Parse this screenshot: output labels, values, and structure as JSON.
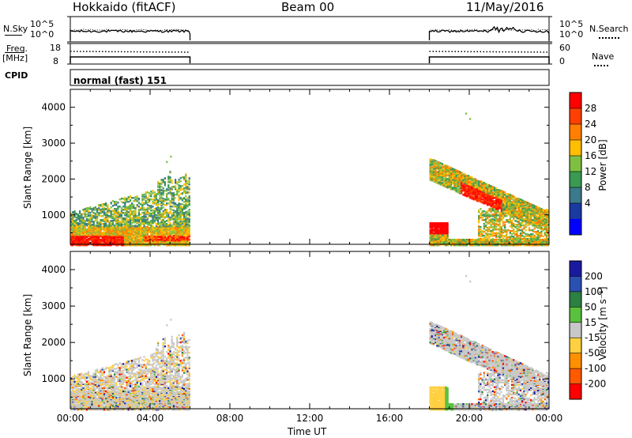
{
  "header": {
    "radar": "Hokkaido (fitACF)",
    "beam": "Beam 00",
    "date": "11/May/2016"
  },
  "summary": {
    "nsky_label": "N.Sky",
    "nsearch_label": "N.Search",
    "noise_ticks_left": [
      "10^5",
      "10^0"
    ],
    "noise_ticks_right": [
      "10^5",
      "10^0"
    ],
    "freq_label": "Freq.",
    "freq_unit": "[MHz]",
    "freq_ticks": [
      "18",
      "8"
    ],
    "nave_label": "Nave",
    "nave_ticks": [
      "60",
      "0"
    ],
    "cpid_label": "CPID",
    "cpid_value": "normal (fast) 151"
  },
  "panels": {
    "power": {
      "ylabel": "Slant Range [km]",
      "yticks": [
        "4000",
        "3000",
        "2000",
        "1000"
      ],
      "colorbar_label": "Power [dB]",
      "colorbar_ticks": [
        "28",
        "24",
        "20",
        "16",
        "12",
        "8",
        "4"
      ],
      "colors": [
        "#ff0000",
        "#ff4000",
        "#ff8000",
        "#ffbf00",
        "#80c040",
        "#3a9a52",
        "#3a7a8a",
        "#1a3aa0",
        "#0000ff"
      ]
    },
    "velocity": {
      "ylabel": "Slant Range [km]",
      "yticks": [
        "4000",
        "3000",
        "2000",
        "1000"
      ],
      "colorbar_label": "Velocity [m s⁻¹]",
      "colorbar_ticks": [
        "200",
        "100",
        "50",
        "15",
        "-15",
        "-50",
        "-100",
        "-200"
      ],
      "colors": [
        "#1a1aa0",
        "#2a50b0",
        "#2e8040",
        "#5ac040",
        "#c8c8c8",
        "#ffd040",
        "#ff9000",
        "#ff5a00",
        "#ff0000"
      ]
    }
  },
  "xaxis": {
    "label": "Time UT",
    "ticks": [
      "00:00",
      "04:00",
      "08:00",
      "12:00",
      "16:00",
      "20:00",
      "00:00"
    ]
  },
  "chart_data": {
    "type": "heatmap",
    "title": "Hokkaido (fitACF)",
    "subtitle": "Beam 00",
    "date": "11/May/2016",
    "xlabel": "Time UT",
    "ylabel": "Slant Range [km]",
    "xlim_hours": [
      0,
      24
    ],
    "ylim_km": [
      180,
      4500
    ],
    "data_gaps_hours": [
      [
        6,
        18
      ]
    ],
    "data_intervals_hours": [
      [
        0,
        6
      ],
      [
        18,
        24
      ]
    ],
    "power_colorbar_db": [
      4,
      8,
      12,
      16,
      20,
      24,
      28
    ],
    "velocity_colorbar_ms": [
      -200,
      -100,
      -50,
      -15,
      15,
      50,
      100,
      200
    ],
    "cpid": 151,
    "cpid_name": "normal (fast)"
  }
}
